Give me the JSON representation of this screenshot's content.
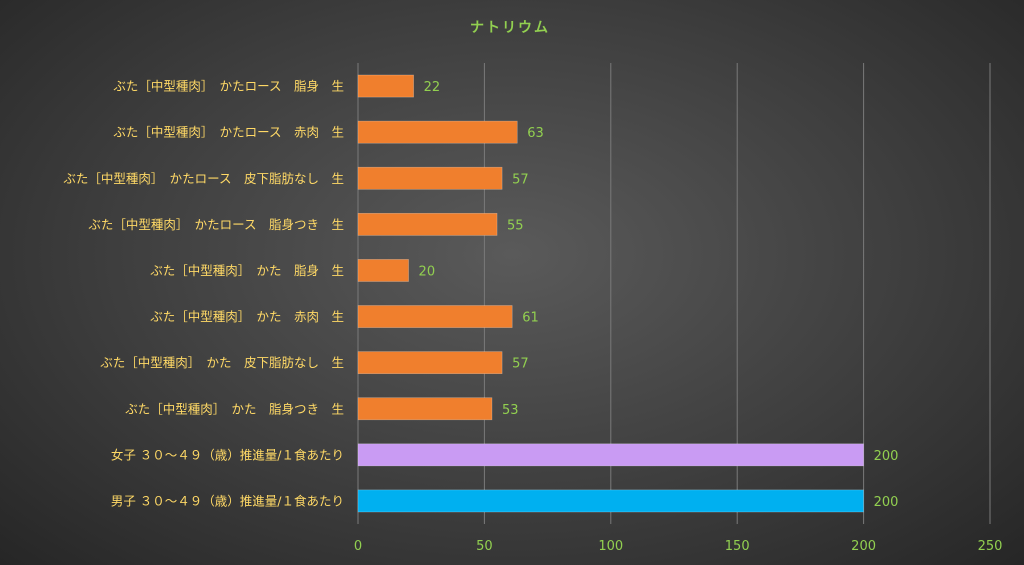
{
  "chart_data": {
    "type": "bar",
    "orientation": "horizontal",
    "title": "ナトリウム",
    "categories": [
      "ぶた［中型種肉］　かたロース　脂身　生",
      "ぶた［中型種肉］　かたロース　赤肉　生",
      "ぶた［中型種肉］　かたロース　皮下脂肪なし　生",
      "ぶた［中型種肉］　かたロース　脂身つき　生",
      "ぶた［中型種肉］　かた　脂身　生",
      "ぶた［中型種肉］　かた　赤肉　生",
      "ぶた［中型種肉］　かた　皮下脂肪なし　生",
      "ぶた［中型種肉］　かた　脂身つき　生",
      "女子 ３０～４９（歳）推進量/１食あたり",
      "男子 ３０～４９（歳）推進量/１食あたり"
    ],
    "values": [
      22,
      63,
      57,
      55,
      20,
      61,
      57,
      53,
      200,
      200
    ],
    "bar_colors": [
      "#f07f2d",
      "#f07f2d",
      "#f07f2d",
      "#f07f2d",
      "#f07f2d",
      "#f07f2d",
      "#f07f2d",
      "#f07f2d",
      "#c99bf3",
      "#00b0f0"
    ],
    "x_ticks": [
      0,
      50,
      100,
      150,
      200,
      250
    ],
    "xlim": [
      0,
      250
    ],
    "grid": true,
    "legend": "none",
    "colors": {
      "title": "#92d050",
      "category_label": "#ffd966",
      "value_label": "#92d050",
      "tick_label": "#92d050",
      "gridline": "#7a7a7a"
    }
  }
}
